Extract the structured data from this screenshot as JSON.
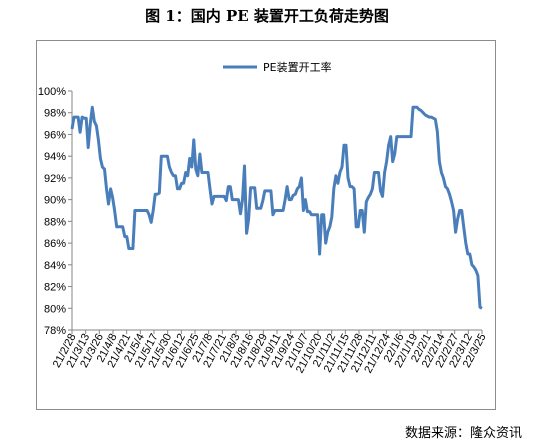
{
  "title": "图 1：国内 PE 装置开工负荷走势图",
  "source": "数据来源：隆众资讯",
  "chart_data": {
    "type": "line",
    "title": "",
    "legend": {
      "position": "top-center"
    },
    "series": [
      {
        "name": "PE装置开工率",
        "color": "#4a7ebb",
        "y": [
          96.5,
          97.6,
          97.6,
          97.6,
          96.2,
          97.6,
          97.5,
          97.5,
          94.8,
          97.0,
          98.5,
          97.2,
          96.8,
          95.5,
          93.8,
          93.0,
          92.8,
          91.0,
          89.6,
          91.0,
          90.2,
          89.0,
          87.5,
          87.5,
          87.5,
          87.5,
          86.6,
          86.6,
          85.5,
          85.5,
          85.5,
          89.0,
          89.0,
          89.0,
          89.0,
          89.0,
          89.0,
          89.0,
          88.6,
          87.9,
          89.0,
          90.5,
          90.5,
          90.6,
          94.0,
          94.0,
          94.0,
          94.0,
          93.0,
          92.5,
          92.2,
          92.2,
          91.0,
          91.0,
          91.5,
          91.5,
          92.5,
          92.2,
          93.8,
          93.0,
          95.5,
          92.8,
          92.2,
          94.2,
          92.5,
          92.5,
          92.5,
          92.5,
          91.0,
          89.6,
          90.3,
          90.3,
          90.3,
          90.3,
          90.3,
          90.3,
          89.9,
          91.2,
          91.2,
          90.0,
          90.0,
          90.0,
          90.0,
          88.7,
          90.0,
          93.1,
          86.9,
          88.2,
          91.1,
          91.1,
          91.1,
          89.2,
          89.2,
          89.2,
          89.9,
          90.8,
          90.8,
          90.8,
          90.8,
          88.6,
          89.0,
          89.0,
          89.0,
          89.0,
          89.0,
          90.0,
          91.2,
          90.0,
          90.0,
          90.4,
          90.5,
          91.0,
          91.2,
          92.0,
          89.0,
          90.0,
          88.9,
          88.9,
          88.6,
          88.6,
          88.6,
          88.6,
          85.0,
          88.6,
          88.6,
          86.0,
          87.0,
          87.5,
          88.4,
          91.0,
          92.2,
          91.5,
          92.5,
          93.0,
          95.0,
          95.0,
          92.0,
          91.2,
          91.2,
          91.0,
          87.5,
          87.5,
          89.0,
          89.0,
          87.0,
          89.8,
          90.2,
          90.5,
          91.0,
          92.5,
          92.5,
          92.5,
          90.8,
          90.3,
          92.5,
          93.5,
          95.0,
          95.8,
          93.5,
          94.2,
          95.8,
          95.8,
          95.8,
          95.8,
          95.8,
          95.8,
          95.8,
          95.8,
          98.5,
          98.5,
          98.5,
          98.3,
          98.2,
          98.0,
          97.8,
          97.7,
          97.6,
          97.6,
          97.5,
          97.4,
          96.3,
          93.5,
          92.5,
          92.0,
          91.2,
          91.0,
          90.5,
          89.8,
          89.0,
          87.0,
          88.2,
          89.0,
          89.0,
          87.5,
          86.0,
          85.0,
          85.0,
          84.0,
          83.8,
          83.5,
          83.0,
          80.1,
          80.0
        ]
      }
    ],
    "x_tick_labels": [
      "21/2/28",
      "21/3/13",
      "21/3/26",
      "21/4/8",
      "21/4/21",
      "21/5/4",
      "21/5/17",
      "21/5/30",
      "21/6/12",
      "21/6/25",
      "21/7/8",
      "21/7/21",
      "21/8/3",
      "21/8/16",
      "21/8/29",
      "21/9/11",
      "21/9/24",
      "21/10/7",
      "21/10/20",
      "21/11/2",
      "21/11/15",
      "21/11/28",
      "21/12/11",
      "21/12/24",
      "22/1/6",
      "22/1/19",
      "22/2/1",
      "22/2/14",
      "22/2/27",
      "22/3/12",
      "22/3/25"
    ],
    "y_tick_labels": [
      "78%",
      "80%",
      "82%",
      "84%",
      "86%",
      "88%",
      "90%",
      "92%",
      "94%",
      "96%",
      "98%",
      "100%"
    ],
    "ylim": [
      78,
      100
    ],
    "y_tick_step": 2,
    "grid": false
  }
}
